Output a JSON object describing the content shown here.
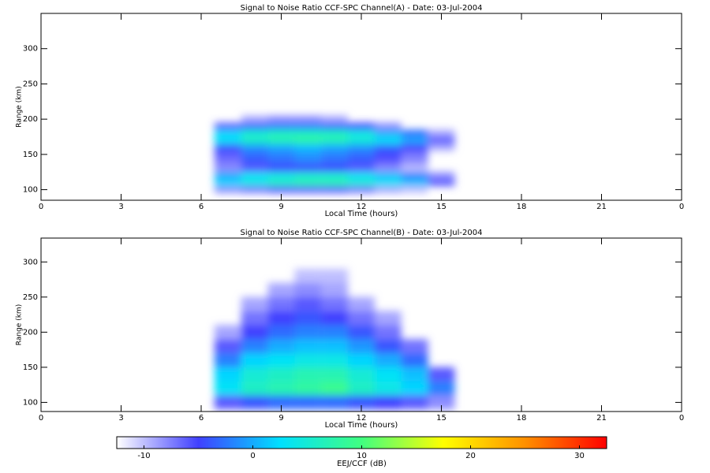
{
  "chart_data": [
    {
      "type": "heatmap",
      "title": "Signal to Noise Ratio CCF-SPC Channel(A) - Date: 03-Jul-2004",
      "xlabel": "Local Time (hours)",
      "ylabel": "Range (km)",
      "x": [
        7,
        8,
        9,
        10,
        11,
        12,
        13,
        14,
        15
      ],
      "y": [
        100,
        110,
        120,
        130,
        140,
        150,
        160,
        170,
        180,
        190,
        200
      ],
      "values": [
        [
          -8,
          -7,
          -6,
          -6,
          -6,
          -7,
          -9,
          -10,
          null
        ],
        [
          2,
          4,
          6,
          7,
          7,
          5,
          3,
          1,
          -6
        ],
        [
          0,
          3,
          4,
          5,
          5,
          3,
          1,
          -2,
          -8
        ],
        [
          -8,
          -6,
          -5,
          -5,
          -5,
          -6,
          -8,
          -10,
          null
        ],
        [
          -7,
          -4,
          -3,
          -2,
          -3,
          -4,
          -6,
          -8,
          null
        ],
        [
          -6,
          -3,
          -2,
          -1,
          -2,
          -3,
          -5,
          -7,
          null
        ],
        [
          -4,
          -1,
          0,
          1,
          0,
          -1,
          -3,
          -5,
          -9
        ],
        [
          3,
          6,
          7,
          8,
          7,
          5,
          3,
          0,
          -6
        ],
        [
          2,
          5,
          6,
          6,
          6,
          4,
          0,
          -3,
          -9
        ],
        [
          -6,
          -3,
          -2,
          -2,
          -3,
          -5,
          -8,
          null,
          null
        ],
        [
          null,
          -9,
          -8,
          -8,
          -9,
          null,
          null,
          null,
          null
        ]
      ],
      "xlim": [
        0,
        24
      ],
      "xticks": [
        0,
        3,
        6,
        9,
        12,
        15,
        18,
        21,
        {
          "value": 24,
          "label": "0"
        }
      ],
      "ylim": [
        85,
        350
      ],
      "yticks": [
        100,
        150,
        200,
        250,
        300
      ]
    },
    {
      "type": "heatmap",
      "title": "Signal to Noise Ratio CCF-SPC Channel(B) - Date: 03-Jul-2004",
      "xlabel": "Local Time (hours)",
      "ylabel": "Range (km)",
      "x": [
        7,
        8,
        9,
        10,
        11,
        12,
        13,
        14,
        15
      ],
      "y": [
        100,
        120,
        140,
        160,
        180,
        200,
        220,
        240,
        260,
        280
      ],
      "values": [
        [
          -6,
          -4,
          -3,
          -3,
          -3,
          -4,
          -5,
          -6,
          -8
        ],
        [
          3,
          6,
          7,
          8,
          9,
          6,
          4,
          2,
          -2
        ],
        [
          2,
          5,
          6,
          7,
          7,
          5,
          3,
          1,
          -6
        ],
        [
          -2,
          2,
          3,
          4,
          4,
          2,
          0,
          -3,
          null
        ],
        [
          -6,
          -2,
          0,
          1,
          1,
          -1,
          -4,
          -7,
          null
        ],
        [
          -9,
          -5,
          -3,
          -2,
          -2,
          -4,
          -7,
          null,
          null
        ],
        [
          null,
          -7,
          -5,
          -4,
          -5,
          -7,
          -9,
          null,
          null
        ],
        [
          null,
          -9,
          -7,
          -6,
          -7,
          -9,
          null,
          null,
          null
        ],
        [
          null,
          null,
          -9,
          -8,
          -9,
          null,
          null,
          null,
          null
        ],
        [
          null,
          null,
          null,
          -10,
          -10,
          null,
          null,
          null,
          null
        ]
      ],
      "xlim": [
        0,
        24
      ],
      "xticks": [
        0,
        3,
        6,
        9,
        12,
        15,
        18,
        21,
        {
          "value": 24,
          "label": "0"
        }
      ],
      "ylim": [
        87,
        334
      ],
      "yticks": [
        100,
        150,
        200,
        250,
        300
      ]
    },
    {
      "type": "colorbar",
      "label": "EEJ/CCF (dB)",
      "clim": [
        -12.5,
        32.5
      ],
      "ticks": [
        -10,
        0,
        10,
        20,
        30
      ],
      "colormap": [
        "#ffffff",
        "#4040ff",
        "#00e0ff",
        "#40ff80",
        "#ffff00",
        "#ff9000",
        "#ff0000"
      ]
    }
  ]
}
